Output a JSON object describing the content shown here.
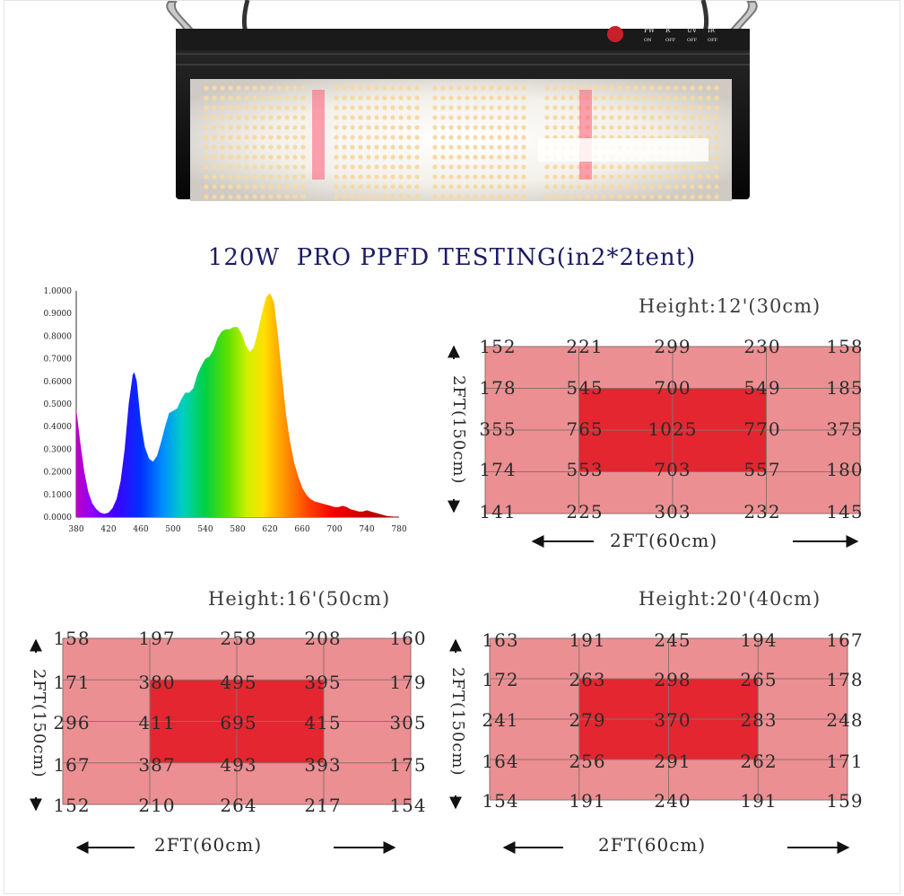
{
  "title": "120W  PRO PPFD TESTING(in2*2tent)",
  "colors": {
    "title": "#1b1a63",
    "grid_outer": "#ec8f92",
    "grid_inner": "#e3262f",
    "grid_line": "#8f6e6f"
  },
  "fixture": {
    "top_labels": [
      "PW",
      "R",
      "UV",
      "IR"
    ],
    "sub_labels": [
      "ON",
      "OFF",
      "OFF",
      "OFF"
    ]
  },
  "chart_data": {
    "type": "area",
    "title": "",
    "xlabel": "",
    "ylabel": "",
    "xlim": [
      380,
      780
    ],
    "ylim": [
      0,
      1
    ],
    "x_ticks": [
      "380",
      "420",
      "460",
      "500",
      "540",
      "580",
      "620",
      "660",
      "700",
      "740",
      "780"
    ],
    "y_ticks": [
      "0.0000",
      "0.1000",
      "0.2000",
      "0.3000",
      "0.4000",
      "0.5000",
      "0.6000",
      "0.7000",
      "0.8000",
      "0.9000",
      "1.0000"
    ],
    "x": [
      380,
      385,
      390,
      395,
      400,
      405,
      410,
      415,
      420,
      425,
      430,
      435,
      440,
      445,
      450,
      452,
      455,
      460,
      465,
      470,
      475,
      480,
      485,
      490,
      495,
      500,
      505,
      510,
      515,
      520,
      525,
      530,
      535,
      540,
      545,
      550,
      555,
      560,
      565,
      570,
      575,
      580,
      585,
      590,
      595,
      600,
      605,
      610,
      615,
      620,
      625,
      630,
      635,
      640,
      645,
      650,
      655,
      660,
      665,
      670,
      675,
      680,
      685,
      690,
      695,
      700,
      705,
      710,
      715,
      720,
      725,
      730,
      735,
      740,
      745,
      750,
      755,
      760,
      765,
      770,
      775,
      780
    ],
    "y": [
      0.48,
      0.33,
      0.2,
      0.11,
      0.06,
      0.035,
      0.02,
      0.015,
      0.02,
      0.04,
      0.08,
      0.16,
      0.3,
      0.5,
      0.63,
      0.64,
      0.6,
      0.42,
      0.31,
      0.26,
      0.245,
      0.27,
      0.33,
      0.4,
      0.46,
      0.47,
      0.48,
      0.52,
      0.55,
      0.55,
      0.57,
      0.63,
      0.67,
      0.7,
      0.71,
      0.74,
      0.79,
      0.82,
      0.83,
      0.83,
      0.84,
      0.84,
      0.81,
      0.76,
      0.73,
      0.75,
      0.82,
      0.9,
      0.97,
      0.99,
      0.95,
      0.8,
      0.62,
      0.45,
      0.33,
      0.24,
      0.18,
      0.13,
      0.1,
      0.08,
      0.07,
      0.065,
      0.06,
      0.055,
      0.05,
      0.045,
      0.045,
      0.05,
      0.045,
      0.035,
      0.03,
      0.025,
      0.025,
      0.03,
      0.025,
      0.02,
      0.015,
      0.01,
      0.005,
      0.003,
      0.002,
      0.001
    ]
  },
  "panels": [
    {
      "height_label": "Height:12'(30cm)",
      "side_label": "2FT(150cm)",
      "width_label": "2FT(60cm)",
      "rows": [
        [
          "152",
          "221",
          "299",
          "230",
          "158"
        ],
        [
          "178",
          "545",
          "700",
          "549",
          "185"
        ],
        [
          "355",
          "765",
          "1025",
          "770",
          "375"
        ],
        [
          "174",
          "553",
          "703",
          "557",
          "180"
        ],
        [
          "141",
          "225",
          "303",
          "232",
          "145"
        ]
      ]
    },
    {
      "height_label": "Height:16'(50cm)",
      "side_label": "2FT(150cm)",
      "width_label": "2FT(60cm)",
      "rows": [
        [
          "158",
          "197",
          "258",
          "208",
          "160"
        ],
        [
          "171",
          "380",
          "495",
          "395",
          "179"
        ],
        [
          "296",
          "411",
          "695",
          "415",
          "305"
        ],
        [
          "167",
          "387",
          "493",
          "393",
          "175"
        ],
        [
          "152",
          "210",
          "264",
          "217",
          "154"
        ]
      ]
    },
    {
      "height_label": "Height:20'(40cm)",
      "side_label": "2FT(150cm)",
      "width_label": "2FT(60cm)",
      "rows": [
        [
          "163",
          "191",
          "245",
          "194",
          "167"
        ],
        [
          "172",
          "263",
          "298",
          "265",
          "178"
        ],
        [
          "241",
          "279",
          "370",
          "283",
          "248"
        ],
        [
          "164",
          "256",
          "291",
          "262",
          "171"
        ],
        [
          "154",
          "191",
          "240",
          "191",
          "159"
        ]
      ]
    }
  ]
}
